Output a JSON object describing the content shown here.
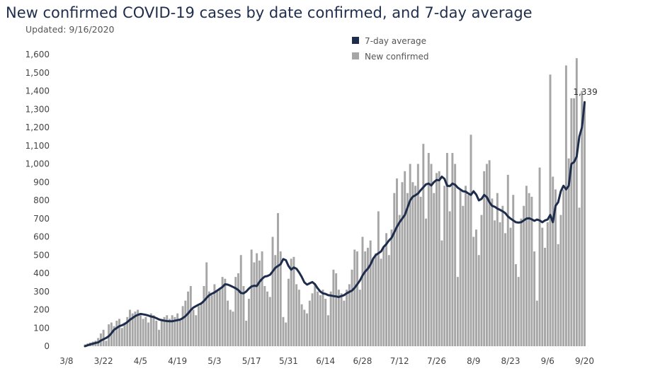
{
  "header": {
    "title": "New confirmed COVID-19 cases by date confirmed, and 7-day average",
    "subtitle": "Updated: 9/16/2020"
  },
  "legend": {
    "avg_label": "7-day average",
    "bar_label": "New confirmed",
    "avg_color": "#1f2d4d",
    "bar_color": "#a6a6a6"
  },
  "annotation": {
    "label": "1,339"
  },
  "chart_data": {
    "type": "bar",
    "title": "New confirmed COVID-19 cases by date confirmed, and 7-day average",
    "xlabel": "",
    "ylabel": "",
    "ylim": [
      0,
      1600
    ],
    "yticks": [
      0,
      100,
      200,
      300,
      400,
      500,
      600,
      700,
      800,
      900,
      1000,
      1100,
      1200,
      1300,
      1400,
      1500,
      1600
    ],
    "ytick_labels": [
      "0",
      "100",
      "200",
      "300",
      "400",
      "500",
      "600",
      "700",
      "800",
      "900",
      "1,000",
      "1,100",
      "1,200",
      "1,300",
      "1,400",
      "1,500",
      "1,600"
    ],
    "xticks": [
      "3/8",
      "3/22",
      "4/5",
      "4/19",
      "5/3",
      "5/17",
      "5/31",
      "6/14",
      "6/28",
      "7/12",
      "7/26",
      "8/9",
      "8/23",
      "9/6",
      "9/20"
    ],
    "x_start": "3/8/2020",
    "grid": false,
    "legend_position": "top-center",
    "series": [
      {
        "name": "New confirmed",
        "type": "bar",
        "values": [
          0,
          0,
          0,
          0,
          0,
          0,
          0,
          10,
          15,
          20,
          25,
          30,
          45,
          70,
          90,
          30,
          120,
          130,
          110,
          140,
          150,
          100,
          130,
          160,
          200,
          180,
          190,
          200,
          170,
          150,
          160,
          130,
          180,
          170,
          140,
          90,
          150,
          160,
          170,
          150,
          170,
          160,
          180,
          140,
          220,
          250,
          300,
          330,
          200,
          170,
          220,
          240,
          330,
          460,
          300,
          280,
          340,
          300,
          320,
          380,
          370,
          250,
          200,
          190,
          380,
          400,
          500,
          330,
          140,
          260,
          530,
          460,
          510,
          470,
          520,
          330,
          300,
          270,
          600,
          500,
          730,
          520,
          160,
          130,
          370,
          480,
          490,
          340,
          310,
          230,
          200,
          180,
          250,
          290,
          340,
          300,
          280,
          310,
          260,
          170,
          300,
          420,
          400,
          310,
          290,
          250,
          310,
          340,
          420,
          530,
          520,
          310,
          600,
          520,
          540,
          580,
          480,
          510,
          740,
          480,
          540,
          620,
          500,
          640,
          840,
          920,
          720,
          900,
          960,
          840,
          1000,
          900,
          880,
          1000,
          820,
          1110,
          700,
          1060,
          1000,
          840,
          950,
          960,
          580,
          880,
          1060,
          740,
          1060,
          1000,
          380,
          860,
          770,
          880,
          830,
          1160,
          600,
          640,
          500,
          720,
          960,
          1000,
          1020,
          810,
          690,
          840,
          680,
          770,
          620,
          940,
          650,
          830,
          450,
          380,
          700,
          770,
          880,
          840,
          820,
          520,
          250,
          980,
          650,
          540,
          680,
          1490,
          930,
          860,
          560,
          720,
          860,
          1540,
          1030,
          1360,
          1360,
          1580,
          760,
          1400,
          1340
        ]
      },
      {
        "name": "7-day average",
        "type": "line",
        "values": [
          null,
          null,
          null,
          null,
          null,
          null,
          null,
          0,
          5,
          10,
          14,
          18,
          21,
          31,
          38,
          45,
          55,
          71,
          90,
          100,
          110,
          115,
          122,
          132,
          145,
          155,
          165,
          172,
          177,
          175,
          172,
          168,
          163,
          160,
          154,
          147,
          143,
          140,
          138,
          137,
          137,
          140,
          143,
          146,
          154,
          165,
          180,
          198,
          212,
          220,
          228,
          235,
          248,
          265,
          280,
          288,
          295,
          305,
          315,
          325,
          340,
          338,
          332,
          325,
          318,
          308,
          292,
          290,
          300,
          316,
          328,
          332,
          330,
          353,
          370,
          382,
          385,
          392,
          410,
          430,
          440,
          450,
          478,
          472,
          440,
          420,
          432,
          425,
          405,
          380,
          350,
          338,
          345,
          352,
          340,
          318,
          300,
          290,
          287,
          280,
          278,
          275,
          273,
          270,
          275,
          280,
          290,
          298,
          305,
          320,
          340,
          360,
          388,
          410,
          425,
          448,
          480,
          500,
          510,
          520,
          545,
          560,
          580,
          595,
          625,
          655,
          680,
          700,
          720,
          760,
          800,
          820,
          828,
          838,
          856,
          872,
          888,
          892,
          882,
          900,
          912,
          910,
          930,
          918,
          880,
          878,
          892,
          886,
          870,
          860,
          850,
          848,
          838,
          830,
          850,
          832,
          800,
          808,
          830,
          818,
          790,
          770,
          765,
          755,
          748,
          740,
          730,
          712,
          700,
          690,
          680,
          678,
          680,
          690,
          700,
          702,
          696,
          688,
          695,
          690,
          680,
          690,
          695,
          720,
          680,
          770,
          790,
          850,
          880,
          860,
          880,
          1000,
          1010,
          1040,
          1150,
          1200,
          1339
        ]
      }
    ]
  }
}
